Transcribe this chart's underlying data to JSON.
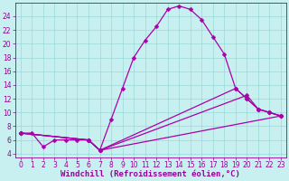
{
  "xlabel": "Windchill (Refroidissement éolien,°C)",
  "ylabel": "",
  "bg_color": "#c8f0f0",
  "line_color": "#aa00aa",
  "xlim": [
    -0.5,
    23.5
  ],
  "ylim": [
    3.5,
    26
  ],
  "xticks": [
    0,
    1,
    2,
    3,
    4,
    5,
    6,
    7,
    8,
    9,
    10,
    11,
    12,
    13,
    14,
    15,
    16,
    17,
    18,
    19,
    20,
    21,
    22,
    23
  ],
  "yticks": [
    4,
    6,
    8,
    10,
    12,
    14,
    16,
    18,
    20,
    22,
    24
  ],
  "grid_color": "#90d4d4",
  "lines": [
    {
      "x": [
        0,
        1,
        2,
        3,
        4,
        5,
        6,
        7,
        8,
        9,
        10,
        11,
        12,
        13,
        14,
        15,
        16,
        17,
        18,
        19,
        20,
        21,
        22,
        23
      ],
      "y": [
        7,
        7,
        5,
        6,
        6,
        6,
        6,
        4.5,
        9,
        13.5,
        18,
        20.5,
        22.5,
        25,
        25.5,
        25,
        23.5,
        21,
        18.5,
        13.5,
        12,
        10.5,
        10,
        9.5
      ]
    },
    {
      "x": [
        0,
        6,
        7,
        23
      ],
      "y": [
        7,
        6,
        4.5,
        9.5
      ]
    },
    {
      "x": [
        0,
        6,
        7,
        20,
        21,
        22,
        23
      ],
      "y": [
        7,
        6,
        4.5,
        12.5,
        10.5,
        10,
        9.5
      ]
    },
    {
      "x": [
        0,
        6,
        7,
        19,
        20,
        21,
        22,
        23
      ],
      "y": [
        7,
        6,
        4.5,
        13.5,
        12,
        10.5,
        10,
        9.5
      ]
    }
  ],
  "title_color": "#990099",
  "title_fontsize": 7,
  "tick_color": "#990099",
  "tick_fontsize": 5.5,
  "xlabel_fontsize": 6.5,
  "xlabel_color": "#990099"
}
